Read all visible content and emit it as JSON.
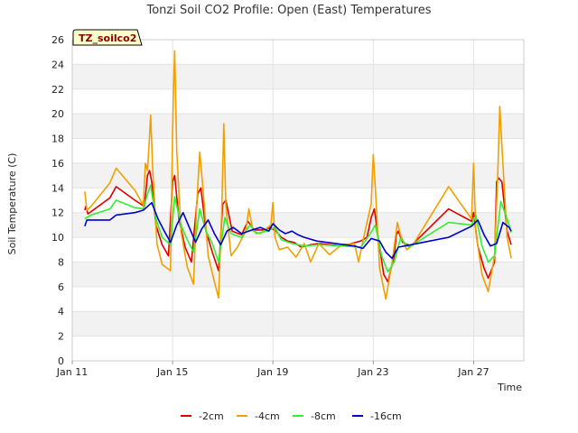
{
  "chart_data": {
    "type": "line",
    "title": "Tonzi Soil CO2 Profile: Open (East) Temperatures",
    "xlabel": "Time",
    "ylabel": "Soil Temperature (C)",
    "tag": "TZ_soilco2",
    "ylim": [
      0,
      26
    ],
    "yticks": [
      0,
      2,
      4,
      6,
      8,
      10,
      12,
      14,
      16,
      18,
      20,
      22,
      24,
      26
    ],
    "xlim": [
      "2000-01-11",
      "2000-01-29"
    ],
    "xticks": [
      {
        "date": "2000-01-11",
        "label": "Jan 11"
      },
      {
        "date": "2000-01-15",
        "label": "Jan 15"
      },
      {
        "date": "2000-01-19",
        "label": "Jan 19"
      },
      {
        "date": "2000-01-23",
        "label": "Jan 23"
      },
      {
        "date": "2000-01-27",
        "label": "Jan 27"
      }
    ],
    "grid": true,
    "legend_position": "bottom",
    "series": [
      {
        "name": "-2cm",
        "color": "#dd0000",
        "points": [
          [
            "2000-01-11 12:00",
            12.2
          ],
          [
            "2000-01-11 13:00",
            12.5
          ],
          [
            "2000-01-11 15:00",
            11.9
          ],
          [
            "2000-01-12 12:00",
            13.2
          ],
          [
            "2000-01-12 18:00",
            14.1
          ],
          [
            "2000-01-13 12:00",
            13.0
          ],
          [
            "2000-01-13 21:00",
            12.5
          ],
          [
            "2000-01-14 00:00",
            15.0
          ],
          [
            "2000-01-14 02:00",
            15.4
          ],
          [
            "2000-01-14 04:00",
            14.5
          ],
          [
            "2000-01-14 08:00",
            11.0
          ],
          [
            "2000-01-14 14:00",
            9.4
          ],
          [
            "2000-01-14 20:00",
            8.5
          ],
          [
            "2000-01-15 00:00",
            14.5
          ],
          [
            "2000-01-15 02:00",
            15.0
          ],
          [
            "2000-01-15 06:00",
            11.5
          ],
          [
            "2000-01-15 12:00",
            9.2
          ],
          [
            "2000-01-15 18:00",
            8.0
          ],
          [
            "2000-01-16 00:00",
            13.5
          ],
          [
            "2000-01-16 03:00",
            14.0
          ],
          [
            "2000-01-16 08:00",
            10.5
          ],
          [
            "2000-01-16 14:00",
            8.8
          ],
          [
            "2000-01-16 20:00",
            7.3
          ],
          [
            "2000-01-17 00:00",
            12.7
          ],
          [
            "2000-01-17 03:00",
            13.0
          ],
          [
            "2000-01-17 09:00",
            10.5
          ],
          [
            "2000-01-17 18:00",
            10.2
          ],
          [
            "2000-01-18 00:00",
            11.3
          ],
          [
            "2000-01-18 06:00",
            10.6
          ],
          [
            "2000-01-18 16:00",
            10.6
          ],
          [
            "2000-01-18 21:00",
            10.8
          ],
          [
            "2000-01-19 03:00",
            10.5
          ],
          [
            "2000-01-19 08:00",
            10.0
          ],
          [
            "2000-01-19 14:00",
            9.7
          ],
          [
            "2000-01-19 20:00",
            9.6
          ],
          [
            "2000-01-20 03:00",
            9.2
          ],
          [
            "2000-01-20 12:00",
            9.4
          ],
          [
            "2000-01-20 20:00",
            9.5
          ],
          [
            "2000-01-21 18:00",
            9.3
          ],
          [
            "2000-01-22 12:00",
            9.7
          ],
          [
            "2000-01-22 18:00",
            10.0
          ],
          [
            "2000-01-22 22:00",
            11.6
          ],
          [
            "2000-01-23 01:00",
            12.3
          ],
          [
            "2000-01-23 05:00",
            9.8
          ],
          [
            "2000-01-23 10:00",
            7.0
          ],
          [
            "2000-01-23 14:00",
            6.4
          ],
          [
            "2000-01-23 20:00",
            8.5
          ],
          [
            "2000-01-23 22:00",
            10.2
          ],
          [
            "2000-01-24 00:00",
            10.5
          ],
          [
            "2000-01-24 04:00",
            9.6
          ],
          [
            "2000-01-24 12:00",
            9.3
          ],
          [
            "2000-01-26 00:00",
            12.3
          ],
          [
            "2000-01-26 22:00",
            11.3
          ],
          [
            "2000-01-27 00:00",
            12.0
          ],
          [
            "2000-01-27 04:00",
            9.3
          ],
          [
            "2000-01-27 10:00",
            7.5
          ],
          [
            "2000-01-27 14:00",
            6.7
          ],
          [
            "2000-01-27 20:00",
            8.0
          ],
          [
            "2000-01-27 22:00",
            14.5
          ],
          [
            "2000-01-28 00:00",
            14.8
          ],
          [
            "2000-01-28 03:00",
            14.5
          ],
          [
            "2000-01-28 08:00",
            10.5
          ],
          [
            "2000-01-28 12:00",
            9.4
          ]
        ]
      },
      {
        "name": "-4cm",
        "color": "#f0a000",
        "points": [
          [
            "2000-01-11 12:00",
            13.7
          ],
          [
            "2000-01-11 14:00",
            12.2
          ],
          [
            "2000-01-11 18:00",
            12.5
          ],
          [
            "2000-01-12 12:00",
            14.4
          ],
          [
            "2000-01-12 18:00",
            15.6
          ],
          [
            "2000-01-13 12:00",
            13.8
          ],
          [
            "2000-01-13 20:00",
            12.6
          ],
          [
            "2000-01-13 22:00",
            16.0
          ],
          [
            "2000-01-14 00:00",
            15.4
          ],
          [
            "2000-01-14 02:00",
            18.2
          ],
          [
            "2000-01-14 03:00",
            19.9
          ],
          [
            "2000-01-14 05:00",
            15.5
          ],
          [
            "2000-01-14 09:00",
            9.5
          ],
          [
            "2000-01-14 14:00",
            7.8
          ],
          [
            "2000-01-14 22:00",
            7.3
          ],
          [
            "2000-01-15 00:00",
            18.5
          ],
          [
            "2000-01-15 01:00",
            22.5
          ],
          [
            "2000-01-15 02:00",
            25.1
          ],
          [
            "2000-01-15 04:00",
            17.0
          ],
          [
            "2000-01-15 08:00",
            10.5
          ],
          [
            "2000-01-15 14:00",
            7.6
          ],
          [
            "2000-01-15 20:00",
            6.2
          ],
          [
            "2000-01-15 23:00",
            12.5
          ],
          [
            "2000-01-16 02:00",
            16.9
          ],
          [
            "2000-01-16 05:00",
            14.0
          ],
          [
            "2000-01-16 10:00",
            8.5
          ],
          [
            "2000-01-16 16:00",
            6.4
          ],
          [
            "2000-01-16 20:00",
            5.1
          ],
          [
            "2000-01-16 23:00",
            12.0
          ],
          [
            "2000-01-17 01:00",
            19.2
          ],
          [
            "2000-01-17 03:00",
            12.5
          ],
          [
            "2000-01-17 08:00",
            8.5
          ],
          [
            "2000-01-17 14:00",
            9.2
          ],
          [
            "2000-01-17 22:00",
            10.5
          ],
          [
            "2000-01-18 01:00",
            12.3
          ],
          [
            "2000-01-18 05:00",
            10.5
          ],
          [
            "2000-01-18 12:00",
            10.3
          ],
          [
            "2000-01-18 22:00",
            11.0
          ],
          [
            "2000-01-19 00:00",
            12.8
          ],
          [
            "2000-01-19 02:00",
            10.0
          ],
          [
            "2000-01-19 06:00",
            9.0
          ],
          [
            "2000-01-19 14:00",
            9.2
          ],
          [
            "2000-01-19 22:00",
            8.4
          ],
          [
            "2000-01-20 06:00",
            9.5
          ],
          [
            "2000-01-20 12:00",
            8.0
          ],
          [
            "2000-01-20 20:00",
            9.5
          ],
          [
            "2000-01-21 06:00",
            8.6
          ],
          [
            "2000-01-21 18:00",
            9.4
          ],
          [
            "2000-01-22 06:00",
            9.5
          ],
          [
            "2000-01-22 10:00",
            8.0
          ],
          [
            "2000-01-22 14:00",
            9.7
          ],
          [
            "2000-01-22 22:00",
            12.7
          ],
          [
            "2000-01-23 00:00",
            16.7
          ],
          [
            "2000-01-23 02:00",
            14.0
          ],
          [
            "2000-01-23 06:00",
            7.5
          ],
          [
            "2000-01-23 12:00",
            5.0
          ],
          [
            "2000-01-23 18:00",
            8.0
          ],
          [
            "2000-01-23 23:00",
            11.2
          ],
          [
            "2000-01-24 02:00",
            10.2
          ],
          [
            "2000-01-24 08:00",
            9.0
          ],
          [
            "2000-01-24 14:00",
            9.4
          ],
          [
            "2000-01-26 00:00",
            14.1
          ],
          [
            "2000-01-26 22:00",
            11.5
          ],
          [
            "2000-01-27 00:00",
            16.0
          ],
          [
            "2000-01-27 02:00",
            10.5
          ],
          [
            "2000-01-27 08:00",
            7.0
          ],
          [
            "2000-01-27 14:00",
            5.6
          ],
          [
            "2000-01-27 20:00",
            8.5
          ],
          [
            "2000-01-27 23:00",
            15.0
          ],
          [
            "2000-01-28 01:00",
            20.6
          ],
          [
            "2000-01-28 03:00",
            17.5
          ],
          [
            "2000-01-28 08:00",
            10.0
          ],
          [
            "2000-01-28 12:00",
            8.3
          ]
        ]
      },
      {
        "name": "-8cm",
        "color": "#33ee33",
        "points": [
          [
            "2000-01-11 12:00",
            11.5
          ],
          [
            "2000-01-11 18:00",
            11.8
          ],
          [
            "2000-01-12 12:00",
            12.3
          ],
          [
            "2000-01-12 18:00",
            13.0
          ],
          [
            "2000-01-13 12:00",
            12.4
          ],
          [
            "2000-01-13 20:00",
            12.3
          ],
          [
            "2000-01-14 00:00",
            13.5
          ],
          [
            "2000-01-14 03:00",
            14.2
          ],
          [
            "2000-01-14 08:00",
            11.5
          ],
          [
            "2000-01-14 14:00",
            10.0
          ],
          [
            "2000-01-14 22:00",
            9.4
          ],
          [
            "2000-01-15 02:00",
            13.3
          ],
          [
            "2000-01-15 08:00",
            11.0
          ],
          [
            "2000-01-15 14:00",
            9.8
          ],
          [
            "2000-01-15 20:00",
            8.8
          ],
          [
            "2000-01-16 02:00",
            12.3
          ],
          [
            "2000-01-16 08:00",
            10.5
          ],
          [
            "2000-01-16 14:00",
            9.5
          ],
          [
            "2000-01-16 20:00",
            8.0
          ],
          [
            "2000-01-17 02:00",
            11.6
          ],
          [
            "2000-01-17 08:00",
            10.3
          ],
          [
            "2000-01-17 18:00",
            10.0
          ],
          [
            "2000-01-18 02:00",
            11.0
          ],
          [
            "2000-01-18 08:00",
            10.3
          ],
          [
            "2000-01-18 18:00",
            10.5
          ],
          [
            "2000-01-19 02:00",
            10.8
          ],
          [
            "2000-01-19 08:00",
            9.8
          ],
          [
            "2000-01-19 18:00",
            9.5
          ],
          [
            "2000-01-20 06:00",
            9.3
          ],
          [
            "2000-01-20 20:00",
            9.4
          ],
          [
            "2000-01-21 18:00",
            9.3
          ],
          [
            "2000-01-22 12:00",
            9.2
          ],
          [
            "2000-01-22 22:00",
            10.4
          ],
          [
            "2000-01-23 02:00",
            11.0
          ],
          [
            "2000-01-23 08:00",
            8.5
          ],
          [
            "2000-01-23 14:00",
            7.2
          ],
          [
            "2000-01-23 20:00",
            8.0
          ],
          [
            "2000-01-24 02:00",
            9.9
          ],
          [
            "2000-01-24 10:00",
            9.2
          ],
          [
            "2000-01-26 00:00",
            11.2
          ],
          [
            "2000-01-26 22:00",
            11.0
          ],
          [
            "2000-01-27 02:00",
            11.8
          ],
          [
            "2000-01-27 08:00",
            9.3
          ],
          [
            "2000-01-27 14:00",
            8.0
          ],
          [
            "2000-01-27 20:00",
            8.5
          ],
          [
            "2000-01-28 02:00",
            12.9
          ],
          [
            "2000-01-28 08:00",
            11.5
          ],
          [
            "2000-01-28 12:00",
            10.4
          ]
        ]
      },
      {
        "name": "-16cm",
        "color": "#0000cc",
        "points": [
          [
            "2000-01-11 12:00",
            10.9
          ],
          [
            "2000-01-11 14:00",
            11.4
          ],
          [
            "2000-01-12 12:00",
            11.4
          ],
          [
            "2000-01-12 18:00",
            11.8
          ],
          [
            "2000-01-13 12:00",
            12.0
          ],
          [
            "2000-01-13 20:00",
            12.2
          ],
          [
            "2000-01-14 04:00",
            12.8
          ],
          [
            "2000-01-14 10:00",
            11.5
          ],
          [
            "2000-01-14 16:00",
            10.5
          ],
          [
            "2000-01-14 22:00",
            9.6
          ],
          [
            "2000-01-15 04:00",
            11.0
          ],
          [
            "2000-01-15 10:00",
            12.0
          ],
          [
            "2000-01-15 16:00",
            10.8
          ],
          [
            "2000-01-15 22:00",
            9.6
          ],
          [
            "2000-01-16 04:00",
            10.7
          ],
          [
            "2000-01-16 10:00",
            11.4
          ],
          [
            "2000-01-16 16:00",
            10.3
          ],
          [
            "2000-01-16 22:00",
            9.4
          ],
          [
            "2000-01-17 04:00",
            10.5
          ],
          [
            "2000-01-17 10:00",
            10.8
          ],
          [
            "2000-01-17 18:00",
            10.3
          ],
          [
            "2000-01-18 04:00",
            10.6
          ],
          [
            "2000-01-18 12:00",
            10.8
          ],
          [
            "2000-01-18 20:00",
            10.5
          ],
          [
            "2000-01-19 00:00",
            11.1
          ],
          [
            "2000-01-19 06:00",
            10.6
          ],
          [
            "2000-01-19 12:00",
            10.3
          ],
          [
            "2000-01-19 18:00",
            10.5
          ],
          [
            "2000-01-20 00:00",
            10.2
          ],
          [
            "2000-01-20 06:00",
            10.0
          ],
          [
            "2000-01-20 18:00",
            9.7
          ],
          [
            "2000-01-21 12:00",
            9.5
          ],
          [
            "2000-01-22 06:00",
            9.3
          ],
          [
            "2000-01-22 14:00",
            9.1
          ],
          [
            "2000-01-22 22:00",
            9.9
          ],
          [
            "2000-01-23 06:00",
            9.7
          ],
          [
            "2000-01-23 12:00",
            8.8
          ],
          [
            "2000-01-23 18:00",
            8.3
          ],
          [
            "2000-01-24 00:00",
            9.2
          ],
          [
            "2000-01-24 12:00",
            9.4
          ],
          [
            "2000-01-25 12:00",
            9.8
          ],
          [
            "2000-01-26 00:00",
            10.0
          ],
          [
            "2000-01-26 22:00",
            10.9
          ],
          [
            "2000-01-27 04:00",
            11.4
          ],
          [
            "2000-01-27 10:00",
            10.2
          ],
          [
            "2000-01-27 16:00",
            9.3
          ],
          [
            "2000-01-27 22:00",
            9.5
          ],
          [
            "2000-01-28 04:00",
            11.2
          ],
          [
            "2000-01-28 10:00",
            10.8
          ],
          [
            "2000-01-28 12:00",
            10.5
          ]
        ]
      }
    ]
  }
}
